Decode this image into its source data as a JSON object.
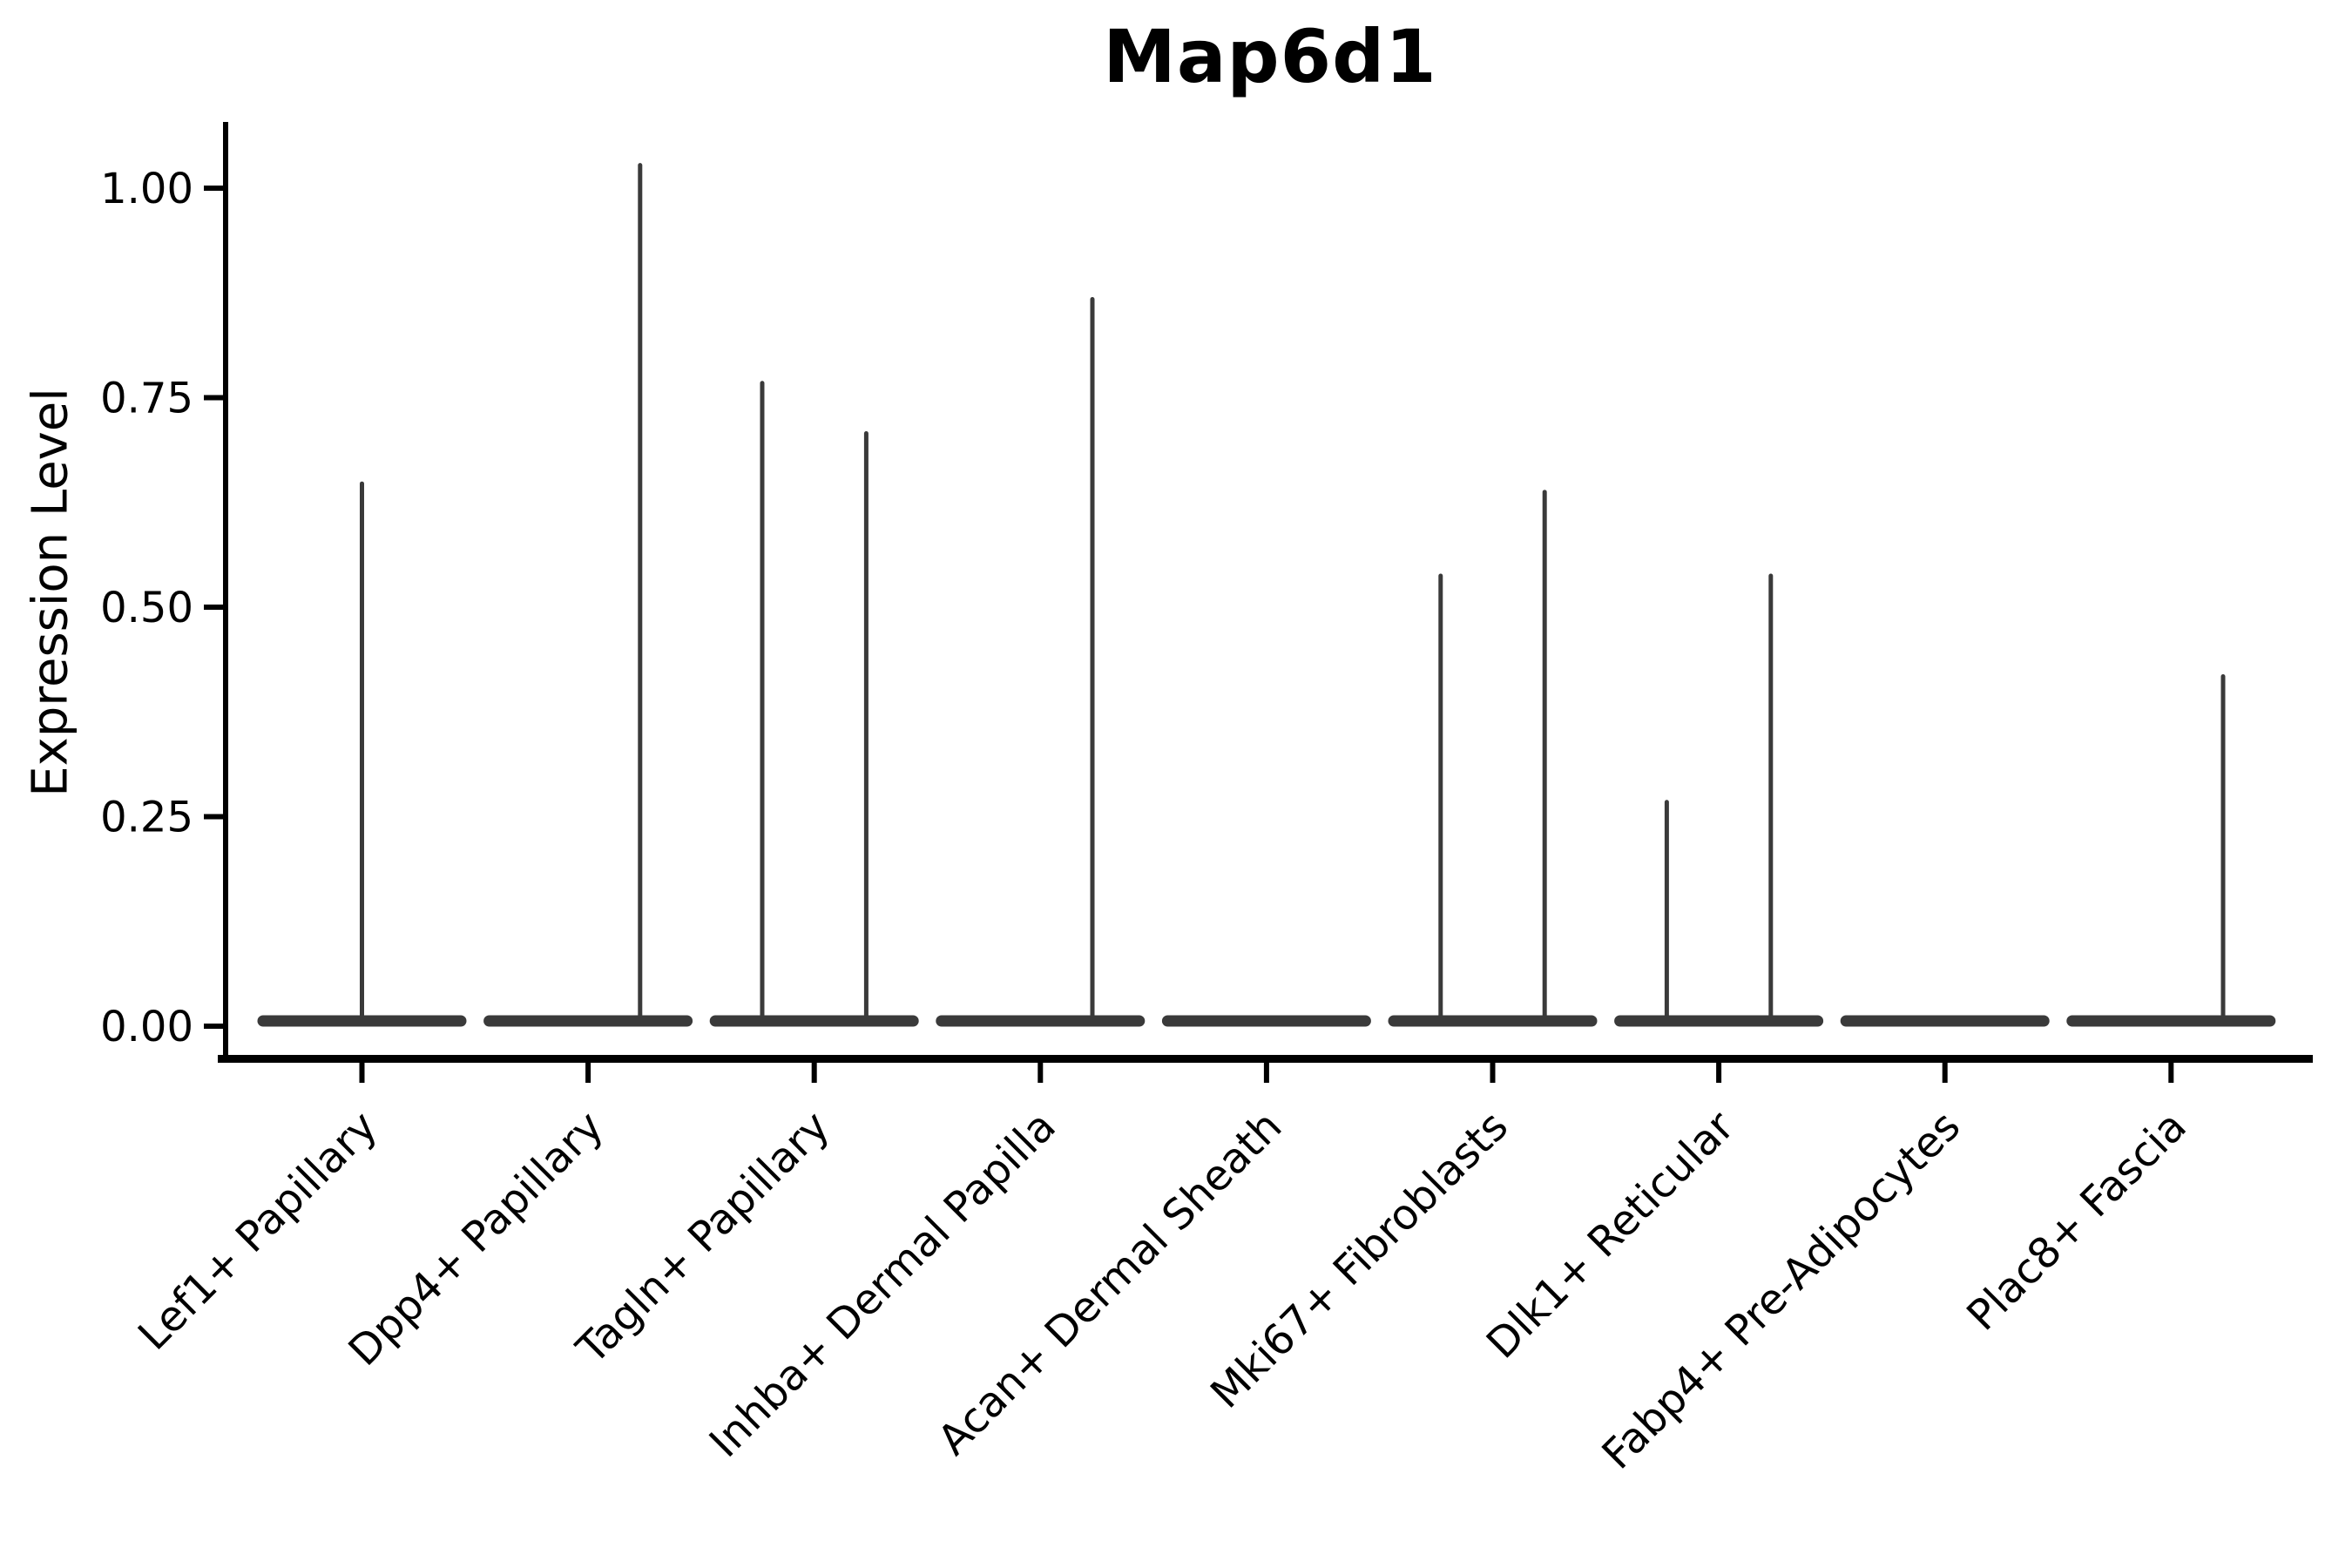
{
  "chart_data": {
    "type": "violin",
    "title": "Map6d1",
    "xlabel": "",
    "ylabel": "Expression Level",
    "ytick_labels": [
      "0.00",
      "0.25",
      "0.50",
      "0.75",
      "1.00"
    ],
    "ytick_values": [
      0,
      0.25,
      0.5,
      0.75,
      1.0
    ],
    "ylim": [
      -0.04,
      1.08
    ],
    "grid": "off",
    "legend": "none",
    "violin_color": "#3a3a3a",
    "axis_color": "#000000",
    "categories": [
      "Lef1+ Papillary",
      "Dpp4+ Papillary",
      "Tagln+ Papillary",
      "Inhba+ Dermal Papilla",
      "Acan+ Dermal Sheath",
      "Mki67+ Fibroblasts",
      "Dlk1+ Reticular",
      "Fabp4+ Pre-Adipocytes",
      "Plac8+ Fascia"
    ],
    "violins": [
      {
        "category": "Lef1+ Papillary",
        "baseline_value": 0,
        "spikes": [
          {
            "offset": 0,
            "max_value": 0.65
          }
        ]
      },
      {
        "category": "Dpp4+ Papillary",
        "baseline_value": 0,
        "spikes": [
          {
            "offset": 0.23,
            "max_value": 1.03
          }
        ]
      },
      {
        "category": "Tagln+ Papillary",
        "baseline_value": 0,
        "spikes": [
          {
            "offset": -0.23,
            "max_value": 0.77
          },
          {
            "offset": 0.23,
            "max_value": 0.71
          }
        ]
      },
      {
        "category": "Inhba+ Dermal Papilla",
        "baseline_value": 0,
        "spikes": [
          {
            "offset": 0.23,
            "max_value": 0.87
          }
        ]
      },
      {
        "category": "Acan+ Dermal Sheath",
        "baseline_value": 0,
        "spikes": []
      },
      {
        "category": "Mki67+ Fibroblasts",
        "baseline_value": 0,
        "spikes": [
          {
            "offset": -0.23,
            "max_value": 0.54
          },
          {
            "offset": 0.23,
            "max_value": 0.64
          }
        ]
      },
      {
        "category": "Dlk1+ Reticular",
        "baseline_value": 0,
        "spikes": [
          {
            "offset": -0.23,
            "max_value": 0.27
          },
          {
            "offset": 0.23,
            "max_value": 0.54
          }
        ]
      },
      {
        "category": "Fabp4+ Pre-Adipocytes",
        "baseline_value": 0,
        "spikes": []
      },
      {
        "category": "Plac8+ Fascia",
        "baseline_value": 0,
        "spikes": [
          {
            "offset": 0.23,
            "max_value": 0.42
          }
        ]
      }
    ]
  }
}
